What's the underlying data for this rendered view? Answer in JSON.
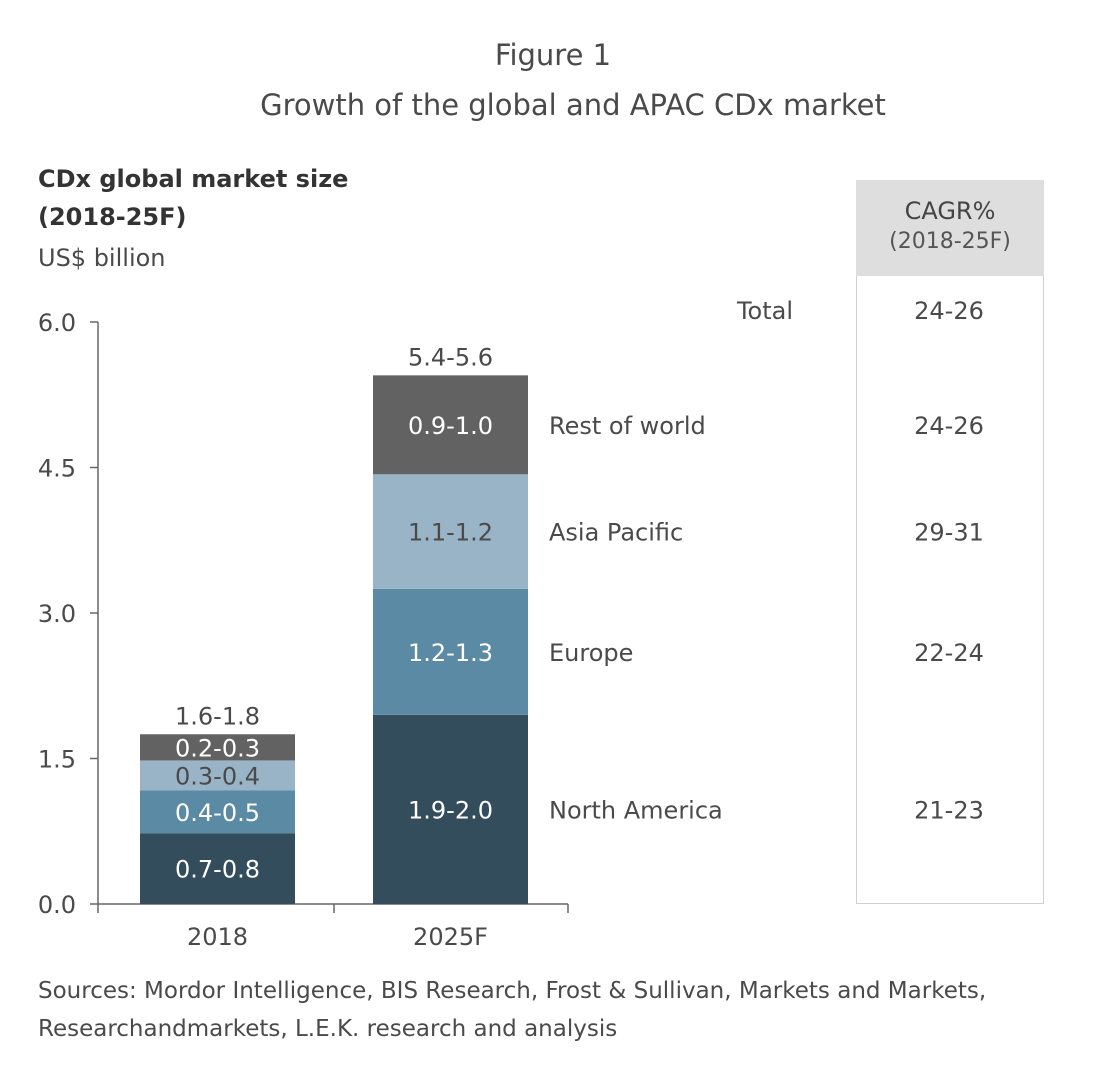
{
  "figure_label": "Figure 1",
  "chart_data": {
    "type": "bar",
    "stacked": true,
    "title": "Growth of the global and APAC CDx market",
    "ylabel_line1": "CDx global market size",
    "ylabel_line2": "(2018-25F)",
    "unit": "US$ billion",
    "ylim": [
      0,
      6.0
    ],
    "yticks": [
      "0.0",
      "1.5",
      "3.0",
      "4.5",
      "6.0"
    ],
    "categories": [
      "2018",
      "2025F"
    ],
    "totals_labels": [
      "1.6-1.8",
      "5.4-5.6"
    ],
    "grid": false,
    "series": [
      {
        "name": "North America",
        "color": "#344d5c",
        "label_color": "#ffffff",
        "values": [
          0.73,
          1.95
        ],
        "labels": [
          "0.7-0.8",
          "1.9-2.0"
        ],
        "cagr": "21-23"
      },
      {
        "name": "Europe",
        "color": "#5a8aa4",
        "label_color": "#ffffff",
        "values": [
          0.44,
          1.3
        ],
        "labels": [
          "0.4-0.5",
          "1.2-1.3"
        ],
        "cagr": "22-24"
      },
      {
        "name": "Asia Pacific",
        "color": "#9ab4c7",
        "label_color": "#4a4a4a",
        "values": [
          0.31,
          1.18
        ],
        "labels": [
          "0.3-0.4",
          "1.1-1.2"
        ],
        "cagr": "29-31"
      },
      {
        "name": "Rest of world",
        "color": "#626262",
        "label_color": "#ffffff",
        "values": [
          0.27,
          1.02
        ],
        "labels": [
          "0.2-0.3",
          "0.9-1.0"
        ],
        "cagr": "24-26"
      }
    ],
    "cagr_header": "CAGR%",
    "cagr_period": "(2018-25F)",
    "total_label": "Total",
    "total_cagr": "24-26"
  },
  "sources_line1": "Sources: Mordor Intelligence, BIS Research, Frost & Sullivan, Markets and Markets,",
  "sources_line2": "Researchandmarkets, L.E.K. research and analysis"
}
